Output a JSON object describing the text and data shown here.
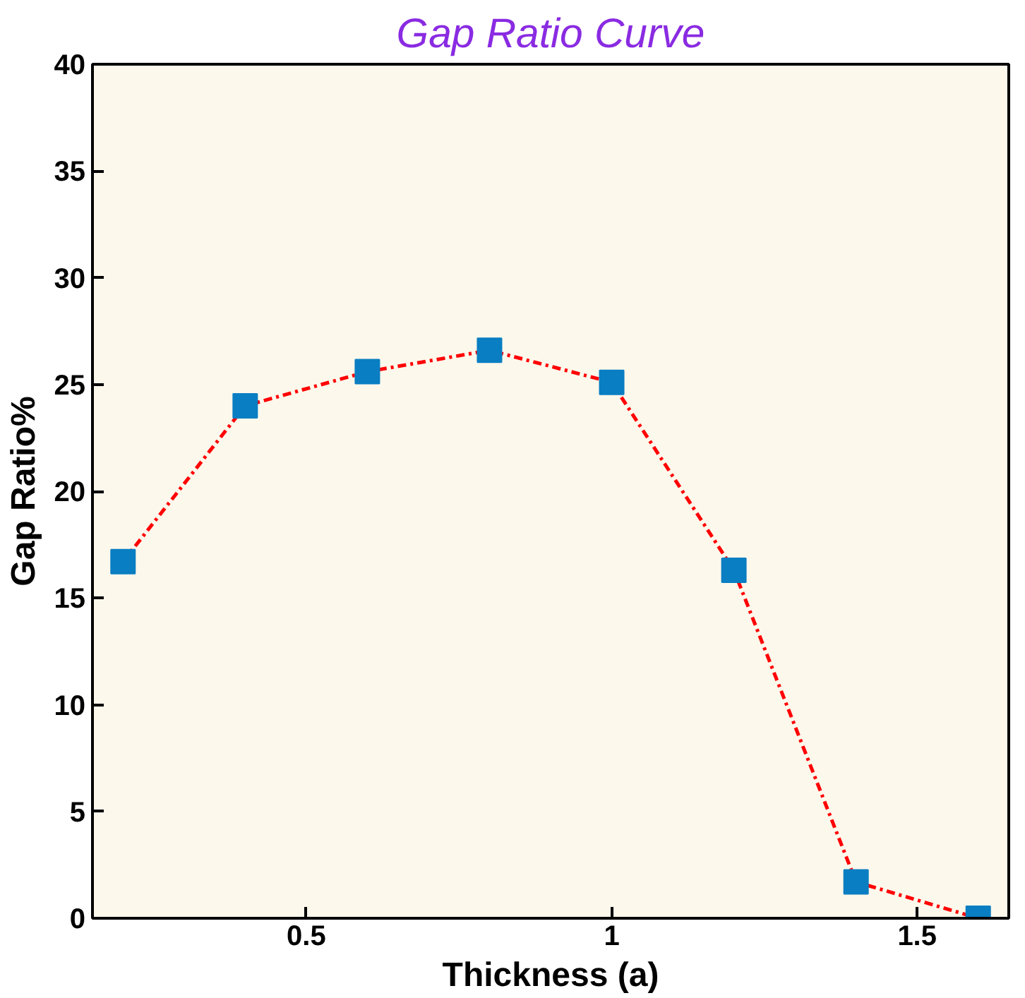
{
  "chart_data": {
    "type": "line",
    "title": "Gap Ratio Curve",
    "xlabel": "Thickness (a)",
    "ylabel": "Gap Ratio%",
    "x": [
      0.2,
      0.4,
      0.6,
      0.8,
      1.0,
      1.2,
      1.4,
      1.6
    ],
    "series": [
      {
        "color": "#ff0000",
        "values": [
          16.7,
          24.0,
          25.6,
          26.6,
          25.1,
          16.3,
          1.7,
          0.0
        ]
      }
    ],
    "xlim": [
      0.15,
      1.65
    ],
    "xticks": [
      0.5,
      1,
      1.5
    ],
    "ylim": [
      0,
      40
    ],
    "yticks": [
      0,
      5,
      10,
      15,
      20,
      25,
      30,
      35,
      40
    ],
    "marker": "square",
    "line_style": "dashed",
    "grid": false
  }
}
